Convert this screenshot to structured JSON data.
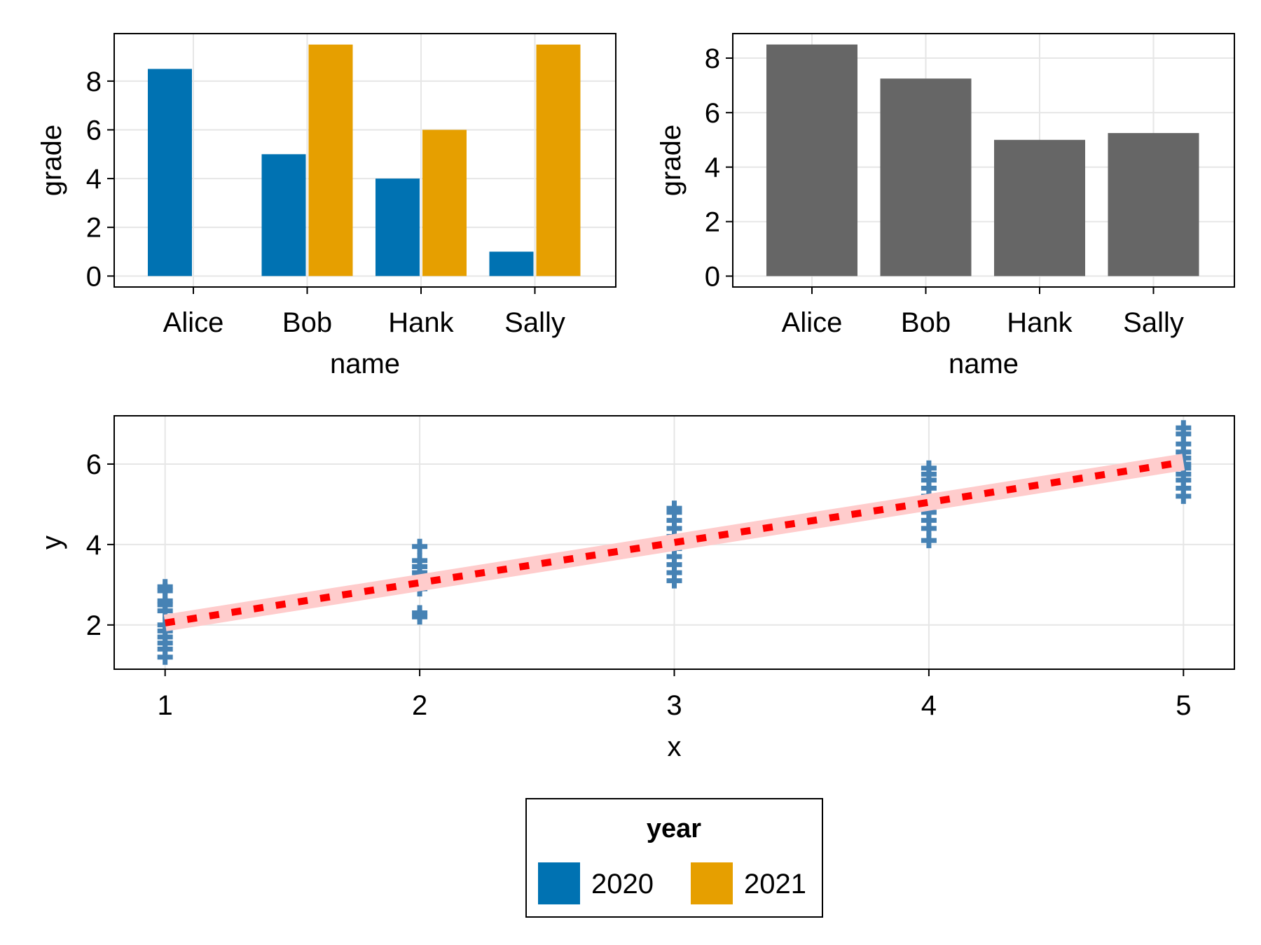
{
  "colors": {
    "year_2020": "#0072B2",
    "year_2021": "#E69F00",
    "bar_gray": "#666666",
    "scatter": "#4682B4",
    "fit_line": "#FF0000",
    "fit_band": "#FFCCCC"
  },
  "legend": {
    "title": "year",
    "items": [
      {
        "label": "2020",
        "color": "#0072B2"
      },
      {
        "label": "2021",
        "color": "#E69F00"
      }
    ]
  },
  "chart_data": [
    {
      "id": "grouped",
      "type": "bar",
      "xlabel": "name",
      "ylabel": "grade",
      "categories": [
        "Alice",
        "Bob",
        "Hank",
        "Sally"
      ],
      "series": [
        {
          "name": "2020",
          "color": "#0072B2",
          "values": [
            8.5,
            5,
            4,
            1
          ]
        },
        {
          "name": "2021",
          "color": "#E69F00",
          "values": [
            null,
            9.5,
            6,
            9.5
          ]
        }
      ],
      "yticks": [
        0,
        2,
        4,
        6,
        8
      ],
      "ylim": [
        -0.45,
        9.95
      ],
      "grid": true
    },
    {
      "id": "mean",
      "type": "bar",
      "xlabel": "name",
      "ylabel": "grade",
      "categories": [
        "Alice",
        "Bob",
        "Hank",
        "Sally"
      ],
      "series": [
        {
          "color": "#666666",
          "values": [
            8.5,
            7.25,
            5,
            5.25
          ]
        }
      ],
      "yticks": [
        0,
        2,
        4,
        6,
        8
      ],
      "ylim": [
        -0.4,
        8.9
      ],
      "grid": true
    },
    {
      "id": "scatter",
      "type": "scatter",
      "xlabel": "x",
      "ylabel": "y",
      "xticks": [
        1,
        2,
        3,
        4,
        5
      ],
      "yticks": [
        2,
        4,
        6
      ],
      "xlim": [
        0.8,
        5.2
      ],
      "ylim": [
        0.9,
        7.2
      ],
      "grid": true,
      "points": [
        [
          1,
          1.2
        ],
        [
          1,
          1.4
        ],
        [
          1,
          1.55
        ],
        [
          1,
          1.7
        ],
        [
          1,
          1.85
        ],
        [
          1,
          2.0
        ],
        [
          1,
          2.35
        ],
        [
          1,
          2.5
        ],
        [
          1,
          2.6
        ],
        [
          1,
          2.85
        ],
        [
          1,
          2.95
        ],
        [
          2,
          2.2
        ],
        [
          2,
          2.3
        ],
        [
          2,
          2.9
        ],
        [
          2,
          3.1
        ],
        [
          2,
          3.3
        ],
        [
          2,
          3.45
        ],
        [
          2,
          3.6
        ],
        [
          2,
          3.95
        ],
        [
          3,
          3.1
        ],
        [
          3,
          3.3
        ],
        [
          3,
          3.5
        ],
        [
          3,
          3.7
        ],
        [
          3,
          3.9
        ],
        [
          3,
          4.0
        ],
        [
          3,
          4.2
        ],
        [
          3,
          4.4
        ],
        [
          3,
          4.6
        ],
        [
          3,
          4.8
        ],
        [
          3,
          4.9
        ],
        [
          4,
          4.1
        ],
        [
          4,
          4.4
        ],
        [
          4,
          4.6
        ],
        [
          4,
          4.8
        ],
        [
          4,
          5.0
        ],
        [
          4,
          5.2
        ],
        [
          4,
          5.4
        ],
        [
          4,
          5.6
        ],
        [
          4,
          5.75
        ],
        [
          4,
          5.9
        ],
        [
          5,
          5.2
        ],
        [
          5,
          5.4
        ],
        [
          5,
          5.6
        ],
        [
          5,
          5.75
        ],
        [
          5,
          5.9
        ],
        [
          5,
          6.0
        ],
        [
          5,
          6.15
        ],
        [
          5,
          6.3
        ],
        [
          5,
          6.5
        ],
        [
          5,
          6.75
        ],
        [
          5,
          6.9
        ]
      ],
      "fit": {
        "x": [
          1,
          5
        ],
        "y": [
          2.05,
          6.05
        ]
      }
    }
  ]
}
